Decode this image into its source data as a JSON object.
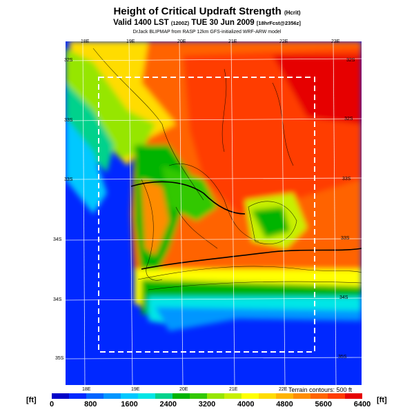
{
  "header": {
    "title": "Height of Critical Updraft Strength",
    "title_unit": "(Hcrit)",
    "valid": "Valid 1400 LST",
    "valid_code": "(1200Z)",
    "date": "TUE 30 Jun 2009",
    "model_tag": "[18hrFcst@2356z]",
    "source": "DrJack BLIPMAP from RASP 12km GFS-initialized WRF-ARW model"
  },
  "map": {
    "lon_labels_top": [
      "18E",
      "19E",
      "20E",
      "21E",
      "22E",
      "23E"
    ],
    "lon_labels_bottom": [
      "18E",
      "19E",
      "20E",
      "21E",
      "22E"
    ],
    "lat_labels_left": [
      "32S",
      "33S",
      "33S",
      "34S",
      "34S",
      "35S"
    ],
    "lat_labels_right": [
      "32S",
      "32S",
      "33S",
      "33S",
      "34S",
      "35S"
    ],
    "terrain_note": "Terrain contours: 500 ft"
  },
  "colorbar": {
    "unit": "[ft]",
    "labels": [
      "0",
      "800",
      "1600",
      "2400",
      "3200",
      "4000",
      "4800",
      "5600",
      "6400"
    ],
    "colors": [
      "#0000c8",
      "#0028ff",
      "#0064ff",
      "#0096ff",
      "#00c8ff",
      "#00e6e6",
      "#00d28c",
      "#00b400",
      "#32c800",
      "#96e600",
      "#c8f000",
      "#ffff00",
      "#ffdc00",
      "#ffb400",
      "#ff8c00",
      "#ff6400",
      "#ff3c00",
      "#e60000"
    ]
  }
}
